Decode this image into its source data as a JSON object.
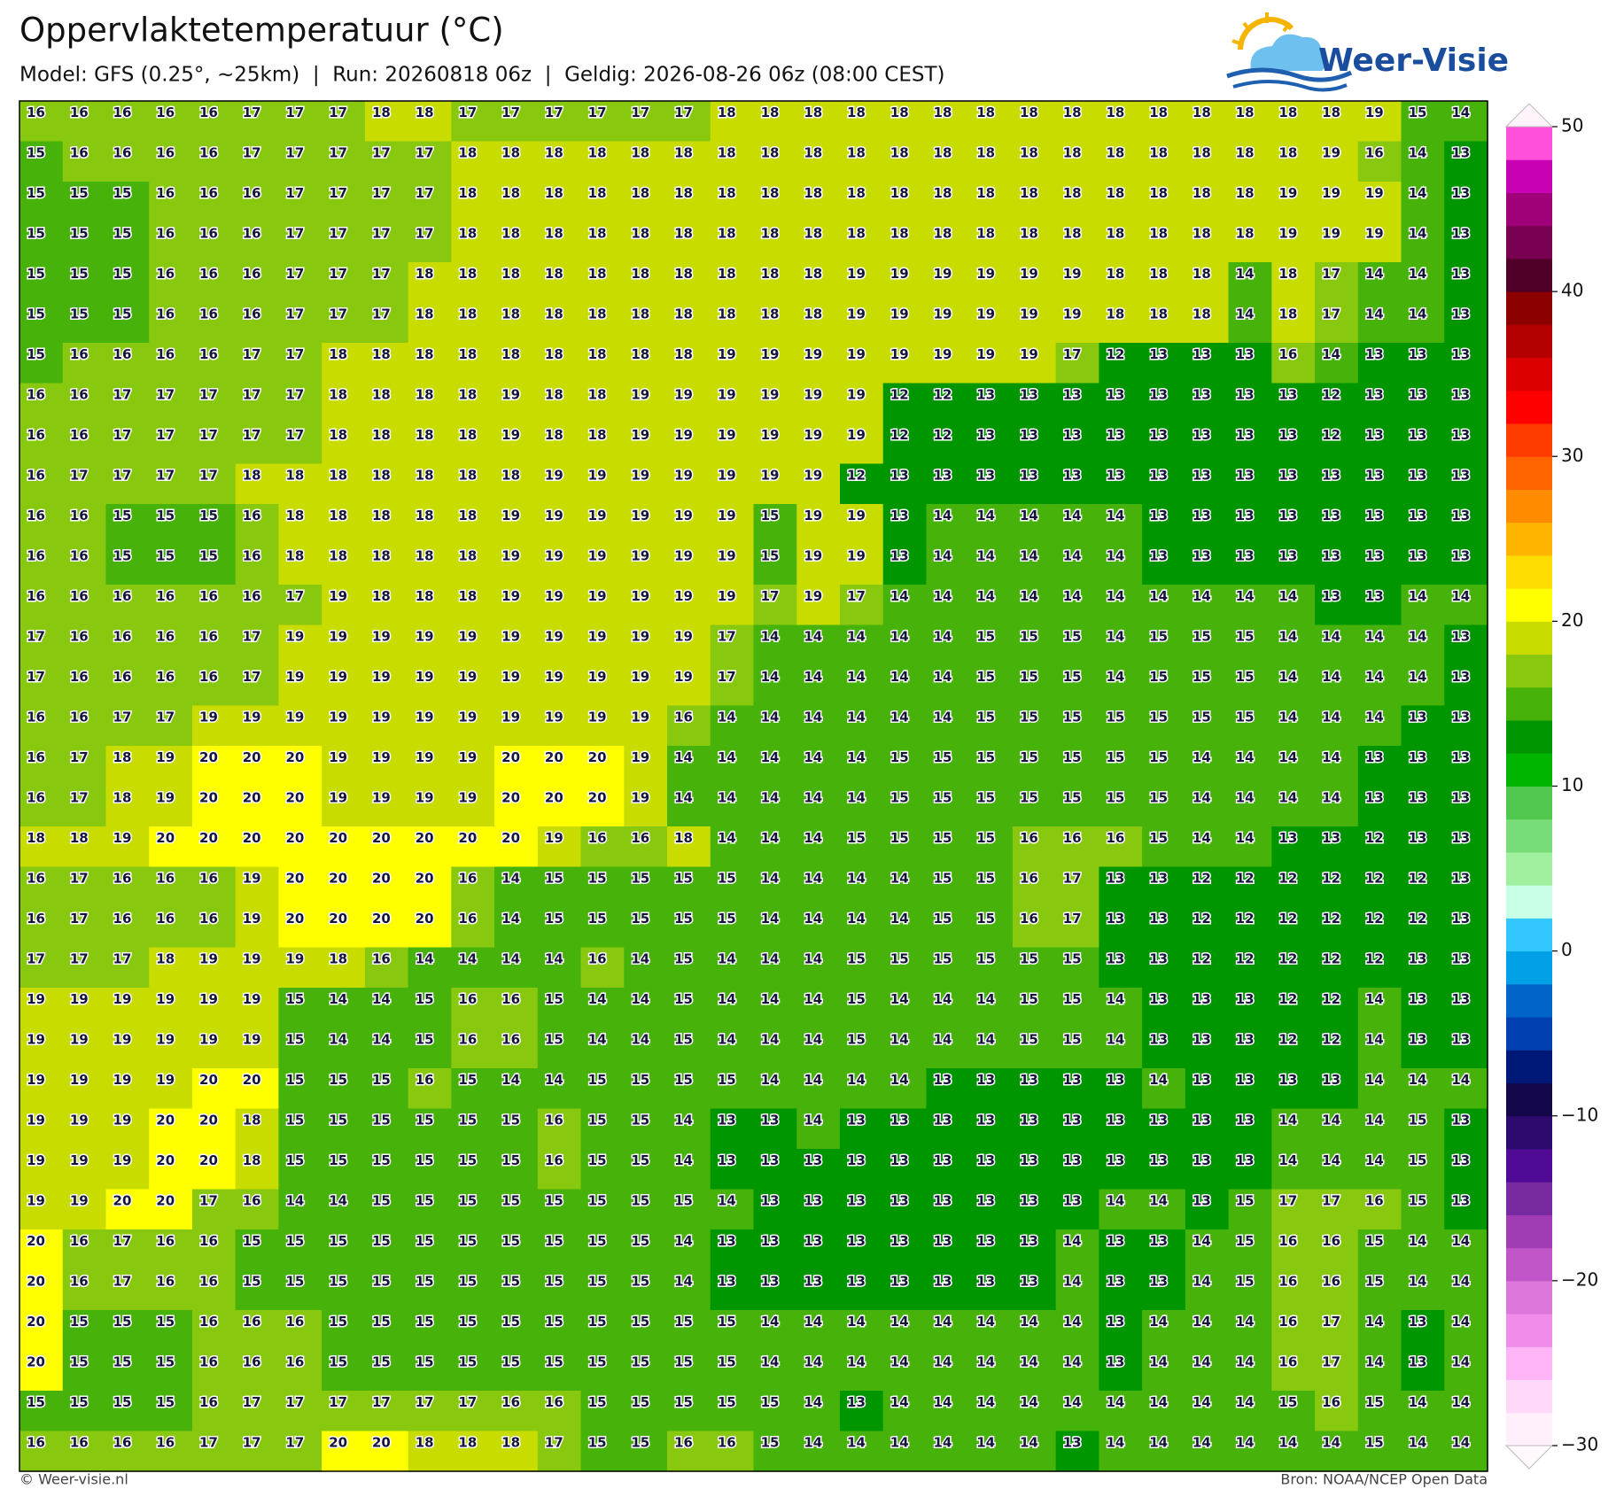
{
  "header": {
    "title": "Oppervlaktetemperatuur (°C)",
    "subtitle": "Model: GFS (0.25°, ~25km)  |  Run: 20260818 06z  |  Geldig: 2026-08-26 06z (08:00 CEST)",
    "logo": "Weer-Visie"
  },
  "map": {
    "values": [
      [
        16,
        16,
        16,
        16,
        16,
        17,
        17,
        17,
        18,
        18,
        17,
        17,
        17,
        17,
        17,
        17,
        18,
        18,
        18,
        18,
        18,
        18,
        18,
        18,
        18,
        18,
        18,
        18,
        18,
        18,
        18,
        19,
        15,
        14
      ],
      [
        15,
        16,
        16,
        16,
        16,
        17,
        17,
        17,
        17,
        17,
        18,
        18,
        18,
        18,
        18,
        18,
        18,
        18,
        18,
        18,
        18,
        18,
        18,
        18,
        18,
        18,
        18,
        18,
        18,
        18,
        19,
        16,
        14,
        13
      ],
      [
        15,
        15,
        15,
        16,
        16,
        16,
        17,
        17,
        17,
        17,
        18,
        18,
        18,
        18,
        18,
        18,
        18,
        18,
        18,
        18,
        18,
        18,
        18,
        18,
        18,
        18,
        18,
        18,
        18,
        19,
        19,
        19,
        14,
        13
      ],
      [
        15,
        15,
        15,
        16,
        16,
        16,
        17,
        17,
        17,
        17,
        18,
        18,
        18,
        18,
        18,
        18,
        18,
        18,
        18,
        18,
        18,
        18,
        18,
        18,
        18,
        18,
        18,
        18,
        18,
        19,
        19,
        19,
        14,
        13
      ],
      [
        15,
        15,
        15,
        16,
        16,
        16,
        17,
        17,
        17,
        18,
        18,
        18,
        18,
        18,
        18,
        18,
        18,
        18,
        18,
        19,
        19,
        19,
        19,
        19,
        19,
        18,
        18,
        18,
        14,
        18,
        17,
        14,
        14,
        13
      ],
      [
        15,
        15,
        15,
        16,
        16,
        16,
        17,
        17,
        17,
        18,
        18,
        18,
        18,
        18,
        18,
        18,
        18,
        18,
        18,
        19,
        19,
        19,
        19,
        19,
        19,
        18,
        18,
        18,
        14,
        18,
        17,
        14,
        14,
        13
      ],
      [
        15,
        16,
        16,
        16,
        16,
        17,
        17,
        18,
        18,
        18,
        18,
        18,
        18,
        18,
        18,
        18,
        19,
        19,
        19,
        19,
        19,
        19,
        19,
        19,
        17,
        12,
        13,
        13,
        13,
        16,
        14,
        13,
        13,
        13
      ],
      [
        16,
        16,
        17,
        17,
        17,
        17,
        17,
        18,
        18,
        18,
        18,
        19,
        18,
        18,
        19,
        19,
        19,
        19,
        19,
        19,
        12,
        12,
        13,
        13,
        13,
        13,
        13,
        13,
        13,
        13,
        12,
        13,
        13,
        13
      ],
      [
        16,
        16,
        17,
        17,
        17,
        17,
        17,
        18,
        18,
        18,
        18,
        19,
        18,
        18,
        19,
        19,
        19,
        19,
        19,
        19,
        12,
        12,
        13,
        13,
        13,
        13,
        13,
        13,
        13,
        13,
        12,
        13,
        13,
        13
      ],
      [
        16,
        17,
        17,
        17,
        17,
        18,
        18,
        18,
        18,
        18,
        18,
        18,
        19,
        19,
        19,
        19,
        19,
        19,
        19,
        12,
        13,
        13,
        13,
        13,
        13,
        13,
        13,
        13,
        13,
        13,
        13,
        13,
        13,
        13
      ],
      [
        16,
        16,
        15,
        15,
        15,
        16,
        18,
        18,
        18,
        18,
        18,
        19,
        19,
        19,
        19,
        19,
        19,
        15,
        19,
        19,
        13,
        14,
        14,
        14,
        14,
        14,
        13,
        13,
        13,
        13,
        13,
        13,
        13,
        13
      ],
      [
        16,
        16,
        15,
        15,
        15,
        16,
        18,
        18,
        18,
        18,
        18,
        19,
        19,
        19,
        19,
        19,
        19,
        15,
        19,
        19,
        13,
        14,
        14,
        14,
        14,
        14,
        13,
        13,
        13,
        13,
        13,
        13,
        13,
        13
      ],
      [
        16,
        16,
        16,
        16,
        16,
        16,
        17,
        19,
        18,
        18,
        18,
        19,
        19,
        19,
        19,
        19,
        19,
        17,
        19,
        17,
        14,
        14,
        14,
        14,
        14,
        14,
        14,
        14,
        14,
        14,
        13,
        13,
        14,
        14
      ],
      [
        17,
        16,
        16,
        16,
        16,
        17,
        19,
        19,
        19,
        19,
        19,
        19,
        19,
        19,
        19,
        19,
        17,
        14,
        14,
        14,
        14,
        14,
        15,
        15,
        15,
        14,
        15,
        15,
        15,
        14,
        14,
        14,
        14,
        13
      ],
      [
        17,
        16,
        16,
        16,
        16,
        17,
        19,
        19,
        19,
        19,
        19,
        19,
        19,
        19,
        19,
        19,
        17,
        14,
        14,
        14,
        14,
        14,
        15,
        15,
        15,
        14,
        15,
        15,
        15,
        14,
        14,
        14,
        14,
        13
      ],
      [
        16,
        16,
        17,
        17,
        19,
        19,
        19,
        19,
        19,
        19,
        19,
        19,
        19,
        19,
        19,
        16,
        14,
        14,
        14,
        14,
        14,
        14,
        15,
        15,
        15,
        15,
        15,
        15,
        15,
        14,
        14,
        14,
        13,
        13
      ],
      [
        16,
        17,
        18,
        19,
        20,
        20,
        20,
        19,
        19,
        19,
        19,
        20,
        20,
        20,
        19,
        14,
        14,
        14,
        14,
        14,
        15,
        15,
        15,
        15,
        15,
        15,
        15,
        14,
        14,
        14,
        14,
        13,
        13,
        13
      ],
      [
        16,
        17,
        18,
        19,
        20,
        20,
        20,
        19,
        19,
        19,
        19,
        20,
        20,
        20,
        19,
        14,
        14,
        14,
        14,
        14,
        15,
        15,
        15,
        15,
        15,
        15,
        15,
        14,
        14,
        14,
        14,
        13,
        13,
        13
      ],
      [
        18,
        18,
        19,
        20,
        20,
        20,
        20,
        20,
        20,
        20,
        20,
        20,
        19,
        16,
        16,
        18,
        14,
        14,
        14,
        15,
        15,
        15,
        15,
        16,
        16,
        16,
        15,
        14,
        14,
        13,
        13,
        12,
        13,
        13
      ],
      [
        16,
        17,
        16,
        16,
        16,
        19,
        20,
        20,
        20,
        20,
        16,
        14,
        15,
        15,
        15,
        15,
        15,
        14,
        14,
        14,
        14,
        15,
        15,
        16,
        17,
        13,
        13,
        12,
        12,
        12,
        12,
        12,
        12,
        13
      ],
      [
        16,
        17,
        16,
        16,
        16,
        19,
        20,
        20,
        20,
        20,
        16,
        14,
        15,
        15,
        15,
        15,
        15,
        14,
        14,
        14,
        14,
        15,
        15,
        16,
        17,
        13,
        13,
        12,
        12,
        12,
        12,
        12,
        12,
        13
      ],
      [
        17,
        17,
        17,
        18,
        19,
        19,
        19,
        18,
        16,
        14,
        14,
        14,
        14,
        16,
        14,
        15,
        14,
        14,
        14,
        15,
        15,
        15,
        15,
        15,
        15,
        13,
        13,
        12,
        12,
        12,
        12,
        12,
        13,
        13
      ],
      [
        19,
        19,
        19,
        19,
        19,
        19,
        15,
        14,
        14,
        15,
        16,
        16,
        15,
        14,
        14,
        15,
        14,
        14,
        14,
        15,
        14,
        14,
        14,
        15,
        15,
        14,
        13,
        13,
        13,
        12,
        12,
        14,
        13,
        13
      ],
      [
        19,
        19,
        19,
        19,
        19,
        19,
        15,
        14,
        14,
        15,
        16,
        16,
        15,
        14,
        14,
        15,
        14,
        14,
        14,
        15,
        14,
        14,
        14,
        15,
        15,
        14,
        13,
        13,
        13,
        12,
        12,
        14,
        13,
        13
      ],
      [
        19,
        19,
        19,
        19,
        20,
        20,
        15,
        15,
        15,
        16,
        15,
        14,
        14,
        15,
        15,
        15,
        15,
        14,
        14,
        14,
        14,
        13,
        13,
        13,
        13,
        13,
        14,
        13,
        13,
        13,
        13,
        14,
        14,
        14
      ],
      [
        19,
        19,
        19,
        20,
        20,
        18,
        15,
        15,
        15,
        15,
        15,
        15,
        16,
        15,
        15,
        14,
        13,
        13,
        14,
        13,
        13,
        13,
        13,
        13,
        13,
        13,
        13,
        13,
        13,
        14,
        14,
        14,
        15,
        13
      ],
      [
        19,
        19,
        19,
        20,
        20,
        18,
        15,
        15,
        15,
        15,
        15,
        15,
        16,
        15,
        15,
        14,
        13,
        13,
        13,
        13,
        13,
        13,
        13,
        13,
        13,
        13,
        13,
        13,
        13,
        14,
        14,
        14,
        15,
        13
      ],
      [
        19,
        19,
        20,
        20,
        17,
        16,
        14,
        14,
        15,
        15,
        15,
        15,
        15,
        15,
        15,
        15,
        14,
        13,
        13,
        13,
        13,
        13,
        13,
        13,
        13,
        14,
        14,
        13,
        15,
        17,
        17,
        16,
        15,
        13
      ],
      [
        20,
        16,
        17,
        16,
        16,
        15,
        15,
        15,
        15,
        15,
        15,
        15,
        15,
        15,
        15,
        14,
        13,
        13,
        13,
        13,
        13,
        13,
        13,
        13,
        14,
        13,
        13,
        14,
        15,
        16,
        16,
        15,
        14,
        14
      ],
      [
        20,
        16,
        17,
        16,
        16,
        15,
        15,
        15,
        15,
        15,
        15,
        15,
        15,
        15,
        15,
        14,
        13,
        13,
        13,
        13,
        13,
        13,
        13,
        13,
        14,
        13,
        13,
        14,
        15,
        16,
        16,
        15,
        14,
        14
      ],
      [
        20,
        15,
        15,
        15,
        16,
        16,
        16,
        15,
        15,
        15,
        15,
        15,
        15,
        15,
        15,
        15,
        15,
        14,
        14,
        14,
        14,
        14,
        14,
        14,
        14,
        13,
        14,
        14,
        14,
        16,
        17,
        14,
        13,
        14
      ],
      [
        20,
        15,
        15,
        15,
        16,
        16,
        16,
        15,
        15,
        15,
        15,
        15,
        15,
        15,
        15,
        15,
        15,
        14,
        14,
        14,
        14,
        14,
        14,
        14,
        14,
        13,
        14,
        14,
        14,
        16,
        17,
        14,
        13,
        14
      ],
      [
        15,
        15,
        15,
        15,
        16,
        17,
        17,
        17,
        17,
        17,
        17,
        16,
        16,
        15,
        15,
        15,
        15,
        15,
        14,
        13,
        14,
        14,
        14,
        14,
        14,
        14,
        14,
        14,
        14,
        15,
        16,
        15,
        14,
        14
      ],
      [
        16,
        16,
        16,
        16,
        17,
        17,
        17,
        20,
        20,
        18,
        18,
        18,
        17,
        15,
        15,
        16,
        16,
        15,
        14,
        14,
        14,
        14,
        14,
        14,
        13,
        14,
        14,
        14,
        14,
        14,
        14,
        15,
        14,
        14
      ]
    ]
  },
  "colorbar": {
    "lim": [
      -30,
      50
    ],
    "ticks": [
      {
        "value": -30,
        "label": "−30"
      },
      {
        "value": -20,
        "label": "−20"
      },
      {
        "value": -10,
        "label": "−10"
      },
      0,
      10,
      20,
      30,
      40,
      50
    ],
    "colors": [
      "#fff0fc",
      "#ffd8fa",
      "#ffb4f5",
      "#f08cea",
      "#dc78dc",
      "#c055c8",
      "#a03cb4",
      "#782aa0",
      "#500a96",
      "#2d0a6e",
      "#14084a",
      "#001878",
      "#0040b0",
      "#0064c8",
      "#00a0e6",
      "#32c8ff",
      "#c8ffe6",
      "#a0f0a0",
      "#78dc78",
      "#50c850",
      "#00b400",
      "#009600",
      "#46b20a",
      "#88c80e",
      "#c8dc00",
      "#ffff00",
      "#ffdc00",
      "#ffb400",
      "#ff8c00",
      "#ff6400",
      "#ff3c00",
      "#ff0000",
      "#dc0000",
      "#b40000",
      "#8c0000",
      "#500028",
      "#780050",
      "#a00078",
      "#c800b4",
      "#ff50dc"
    ]
  },
  "footer": {
    "left": "© Weer-visie.nl",
    "right": "Bron: NOAA/NCEP Open Data"
  }
}
